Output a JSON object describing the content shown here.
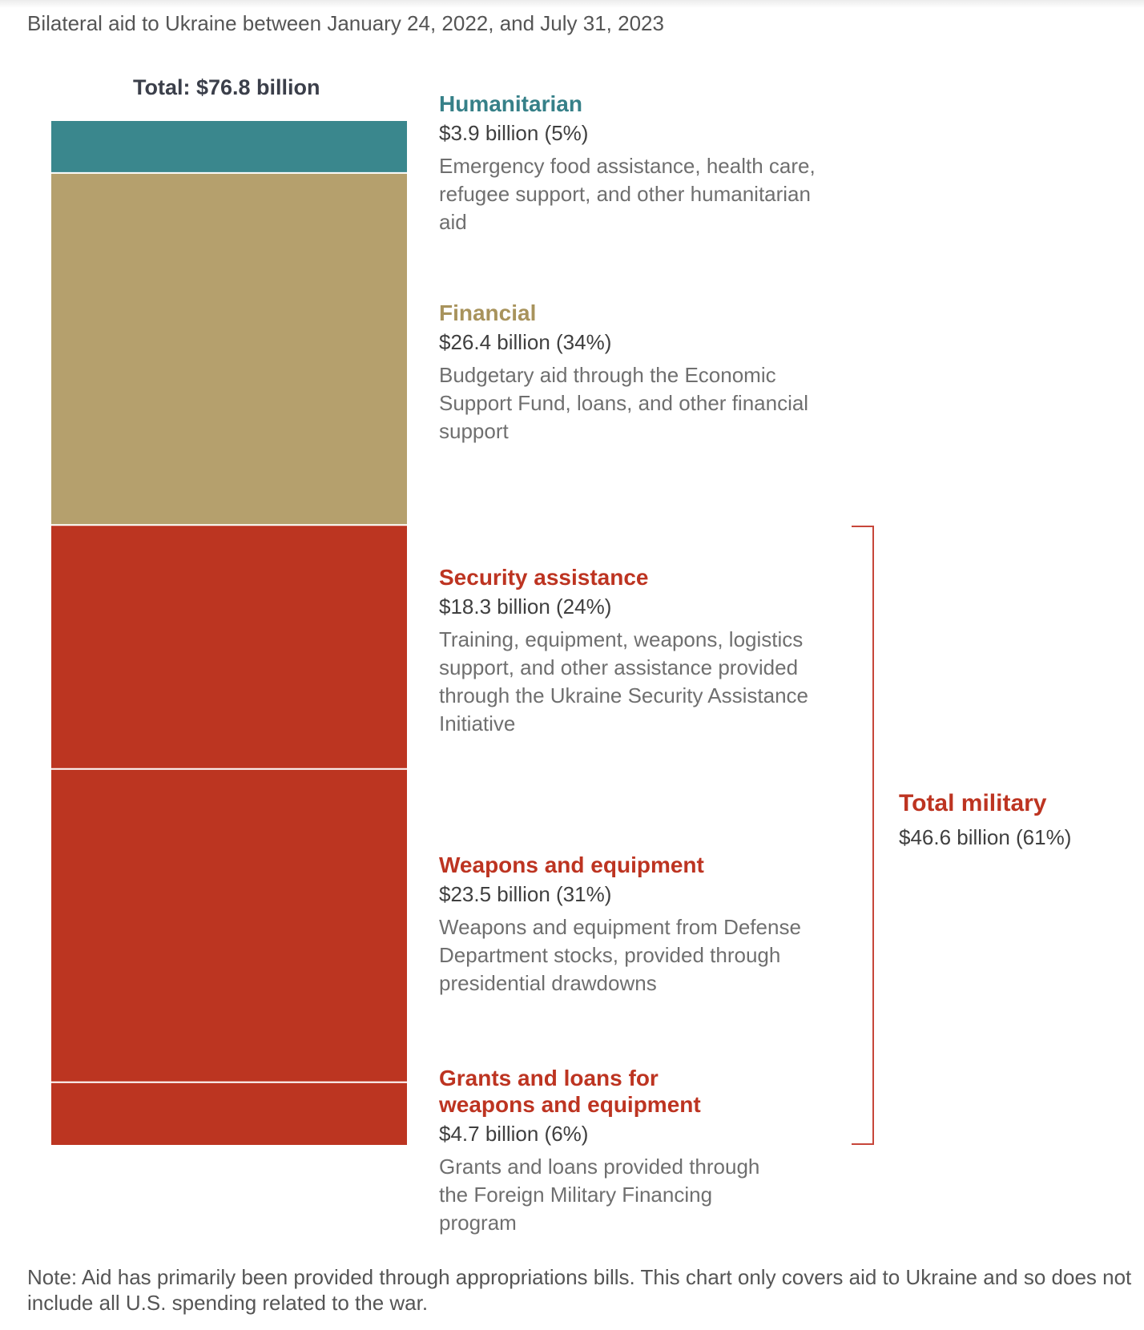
{
  "chart_data": {
    "type": "bar",
    "subtype": "stacked-single-column",
    "title": "Bilateral aid to Ukraine between January 24, 2022, and July 31, 2023",
    "total_label": "Total: $76.8 billion",
    "total": 76.8,
    "unit": "billion USD",
    "segments": [
      {
        "key": "humanitarian",
        "name": "Humanitarian",
        "value": 3.9,
        "percent": 5,
        "amount_label": "$3.9 billion (5%)",
        "description": "Emergency food assistance, health care, refugee support, and other humanitarian aid",
        "color": "#3a878d"
      },
      {
        "key": "financial",
        "name": "Financial",
        "value": 26.4,
        "percent": 34,
        "amount_label": "$26.4 billion (34%)",
        "description": "Budgetary aid through the Economic Support Fund, loans, and other financial support",
        "color": "#b5a06d"
      },
      {
        "key": "security",
        "name": "Security assistance",
        "value": 18.3,
        "percent": 24,
        "amount_label": "$18.3 billion (24%)",
        "description": "Training, equipment, weapons, logistics support, and other assistance provided through the Ukraine Security Assistance Initiative",
        "color": "#bc3521"
      },
      {
        "key": "weapons",
        "name": "Weapons and equipment",
        "value": 23.5,
        "percent": 31,
        "amount_label": "$23.5 billion (31%)",
        "description": "Weapons and equipment from Defense Department stocks, provided through presidential drawdowns",
        "color": "#bc3521"
      },
      {
        "key": "grants",
        "name": "Grants and loans for weapons and equipment",
        "value": 4.7,
        "percent": 6,
        "amount_label": "$4.7 billion (6%)",
        "description": "Grants and loans provided through the Foreign Military Financing program",
        "color": "#bc3521"
      }
    ],
    "group": {
      "name": "Total military",
      "value": 46.6,
      "percent": 61,
      "amount_label": "$46.6 billion (61%)",
      "members": [
        "security",
        "weapons",
        "grants"
      ],
      "color": "#bd3421"
    }
  },
  "note": "Note: Aid has primarily been provided through appropriations bills. This chart only covers aid to Ukraine and so does not include all U.S. spending related to the war.",
  "colors": {
    "humanitarian_label": "#368088",
    "financial_label": "#a8935c",
    "military_label": "#bd3421"
  }
}
